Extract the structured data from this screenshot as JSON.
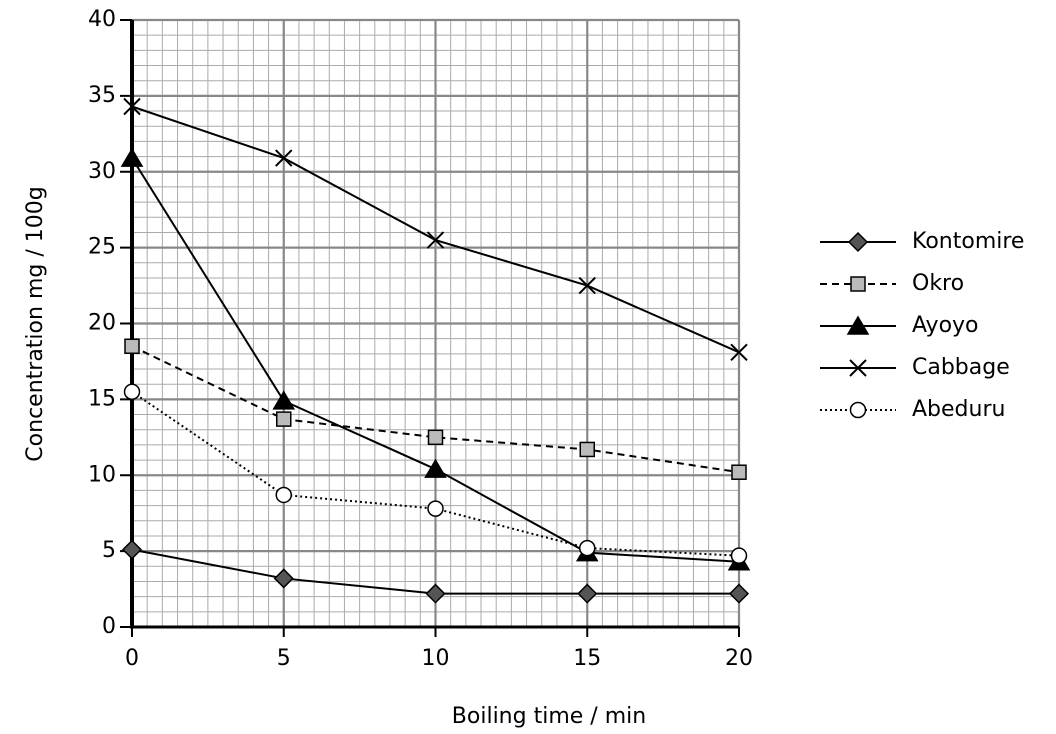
{
  "chart_data": {
    "type": "line",
    "x_label": "Boiling time / min",
    "y_label": "Concentration mg / 100g",
    "x": [
      0,
      5,
      10,
      15,
      20
    ],
    "xlim": [
      0,
      20
    ],
    "xticks": [
      0,
      5,
      10,
      15,
      20
    ],
    "ylim": [
      0,
      40
    ],
    "yticks": [
      0,
      5,
      10,
      15,
      20,
      25,
      30,
      35,
      40
    ],
    "grid": true,
    "grid_minor": {
      "x": 0.5,
      "y": 1
    },
    "legend": "right",
    "series": [
      {
        "name": "Kontomire",
        "color": "#000000",
        "marker": "diamond",
        "marker_fill": "#555555",
        "line_style": "solid",
        "values": [
          5.1,
          3.2,
          2.2,
          2.2,
          2.2
        ]
      },
      {
        "name": "Okro",
        "color": "#000000",
        "marker": "square",
        "marker_fill": "#bbbbbb",
        "line_style": "dashed",
        "values": [
          18.5,
          13.7,
          12.5,
          11.7,
          10.2
        ]
      },
      {
        "name": "Ayoyo",
        "color": "#000000",
        "marker": "triangle",
        "marker_fill": "#000000",
        "line_style": "solid",
        "values": [
          30.9,
          14.9,
          10.4,
          4.9,
          4.3
        ]
      },
      {
        "name": "Cabbage",
        "color": "#000000",
        "marker": "x",
        "marker_fill": "none",
        "line_style": "solid",
        "values": [
          34.3,
          30.9,
          25.5,
          22.5,
          18.1
        ]
      },
      {
        "name": "Abeduru",
        "color": "#000000",
        "marker": "circle",
        "marker_fill": "#ffffff",
        "line_style": "dotted",
        "values": [
          15.5,
          8.7,
          7.8,
          5.2,
          4.7
        ]
      }
    ]
  }
}
